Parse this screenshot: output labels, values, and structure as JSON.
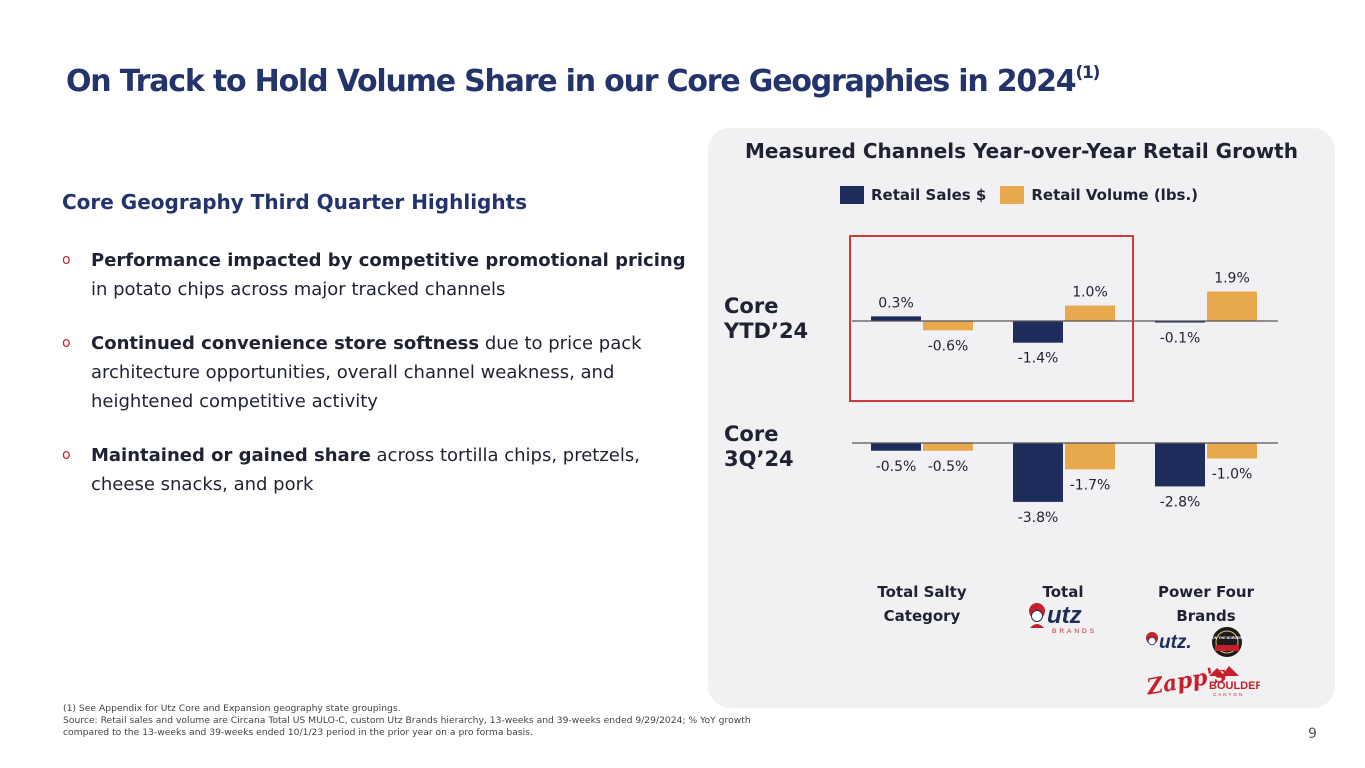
{
  "slide": {
    "title": "On Track to Hold Volume Share in our Core Geographies in 2024",
    "title_sup": "(1)",
    "page_number": "9"
  },
  "highlights": {
    "heading": "Core Geography Third Quarter Highlights",
    "marker": "o",
    "bullets": [
      {
        "bold": "Performance impacted by competitive promotional pricing",
        "text": " in potato chips across major tracked channels"
      },
      {
        "bold": "Continued convenience store softness",
        "text": " due to price pack architecture opportunities, overall channel weakness, and heightened competitive activity"
      },
      {
        "bold": "Maintained or gained share",
        "text": " across tortilla chips, pretzels, cheese snacks, and pork"
      }
    ]
  },
  "footnote": {
    "line1": "(1) See Appendix for Utz Core and Expansion geography state groupings.",
    "line2": "Source: Retail sales and volume are Circana Total US MULO-C, custom Utz Brands hierarchy, 13-weeks and 39-weeks ended 9/29/2024; % YoY growth compared to the 13-weeks and 39-weeks ended 10/1/23 period in the prior year on a pro forma basis."
  },
  "chart_data": {
    "type": "bar",
    "title": "Measured Channels Year-over-Year Retail Growth",
    "categories": [
      "Total Salty\nCategory",
      "Total",
      "Power Four\nBrands"
    ],
    "legend": [
      "Retail Sales $",
      "Retail Volume (lbs.)"
    ],
    "colors": {
      "sales": "#1e2d5c",
      "volume": "#e8a84c",
      "highlight": "#d03a3a"
    },
    "panels": [
      {
        "label": "Core\nYTD’24",
        "series": [
          {
            "name": "Retail Sales $",
            "values": [
              0.3,
              -1.4,
              -0.1
            ],
            "labels": [
              "0.3%",
              "-1.4%",
              "-0.1%"
            ]
          },
          {
            "name": "Retail Volume (lbs.)",
            "values": [
              -0.6,
              1.0,
              1.9
            ],
            "labels": [
              "-0.6%",
              "1.0%",
              "1.9%"
            ]
          }
        ],
        "highlighted_categories": [
          "Total Salty Category",
          "Total"
        ]
      },
      {
        "label": "Core\n3Q’24",
        "series": [
          {
            "name": "Retail Sales $",
            "values": [
              -0.5,
              -3.8,
              -2.8
            ],
            "labels": [
              "-0.5%",
              "-3.8%",
              "-2.8%"
            ]
          },
          {
            "name": "Retail Volume (lbs.)",
            "values": [
              -0.5,
              -1.7,
              -1.0
            ],
            "labels": [
              "-0.5%",
              "-1.7%",
              "-1.0%"
            ]
          }
        ]
      }
    ],
    "unit": "%"
  },
  "logos": {
    "utz_main": "utz",
    "utz_main_sub": "BRANDS",
    "utz_small": "utz.",
    "zapps": "Zapp's",
    "boulder": "BOULDER",
    "boulder_sub": "CANYON",
    "on_the_border": "ON THE BORDER"
  }
}
